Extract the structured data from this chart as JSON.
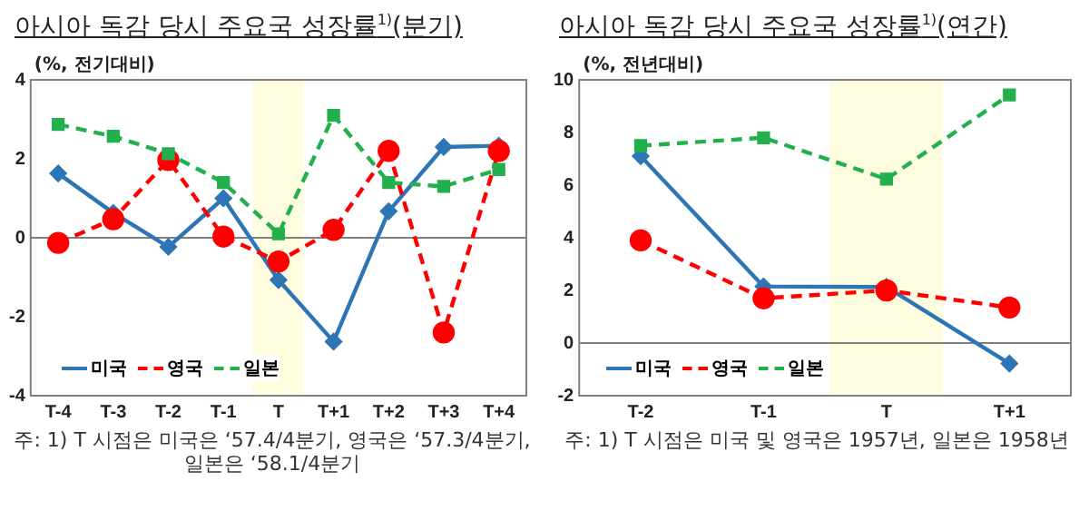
{
  "chart_data": [
    {
      "type": "line",
      "title": "아시아 독감 당시 주요국 성장률$^{1)}$(분기)",
      "ylabel": "(%, 전기대비)",
      "categories": [
        "T-4",
        "T-3",
        "T-2",
        "T-1",
        "T",
        "T+1",
        "T+2",
        "T+3",
        "T+4"
      ],
      "series": [
        {
          "name": "미국",
          "color": "#2e75b6",
          "marker": "diamond",
          "line_style": "solid",
          "values": [
            1.63,
            0.63,
            -0.23,
            1.0,
            -1.07,
            -2.63,
            0.67,
            2.3,
            2.33
          ]
        },
        {
          "name": "영국",
          "color": "#ff0000",
          "marker": "circle",
          "line_style": "dashed",
          "values": [
            -0.13,
            0.47,
            1.97,
            0.03,
            -0.6,
            0.2,
            2.2,
            -2.4,
            2.2
          ]
        },
        {
          "name": "일본",
          "color": "#21b04b",
          "marker": "square",
          "line_style": "dashed",
          "values": [
            2.87,
            2.57,
            2.13,
            1.4,
            0.1,
            3.1,
            1.4,
            1.3,
            1.73
          ]
        }
      ],
      "ylim": [
        -4,
        4
      ],
      "yticks": [
        -4,
        -2,
        0,
        2,
        4
      ],
      "grid": false,
      "legend": "bottom left",
      "ref_lines": [
        {
          "axis": "y",
          "value": 0,
          "color": "#808080"
        }
      ],
      "bands": [
        {
          "axis": "x",
          "from": "T",
          "to": "T",
          "color": "#fffde0"
        }
      ],
      "annotations": [
        "주: 1) T 시점은 미국은 ‘57.4/4분기, 영국은 ‘57.3/4분기, 일본은 ‘58.1/4분기"
      ]
    },
    {
      "type": "line",
      "title": "아시아 독감 당시 주요국 성장률$^{1)}$(연간)",
      "ylabel": "(%, 전년대비)",
      "categories": [
        "T-2",
        "T-1",
        "T",
        "T+1"
      ],
      "series": [
        {
          "name": "미국",
          "color": "#2e75b6",
          "marker": "diamond",
          "line_style": "solid",
          "values": [
            7.1,
            2.15,
            2.13,
            -0.78
          ]
        },
        {
          "name": "영국",
          "color": "#ff0000",
          "marker": "circle",
          "line_style": "dashed",
          "values": [
            3.9,
            1.7,
            2.0,
            1.35
          ]
        },
        {
          "name": "일본",
          "color": "#21b04b",
          "marker": "square",
          "line_style": "dashed",
          "values": [
            7.5,
            7.8,
            6.23,
            9.43
          ]
        }
      ],
      "ylim": [
        -2,
        10
      ],
      "yticks": [
        -2,
        0,
        2,
        4,
        6,
        8,
        10
      ],
      "grid": false,
      "legend": "bottom left",
      "ref_lines": [
        {
          "axis": "y",
          "value": 0,
          "color": "#808080"
        }
      ],
      "bands": [
        {
          "axis": "x",
          "from": "T",
          "to": "T",
          "color": "#fffde0"
        }
      ],
      "annotations": [
        "주: 1) T 시점은 미국 및 영국은 1957년, 일본은 1958년"
      ]
    }
  ]
}
